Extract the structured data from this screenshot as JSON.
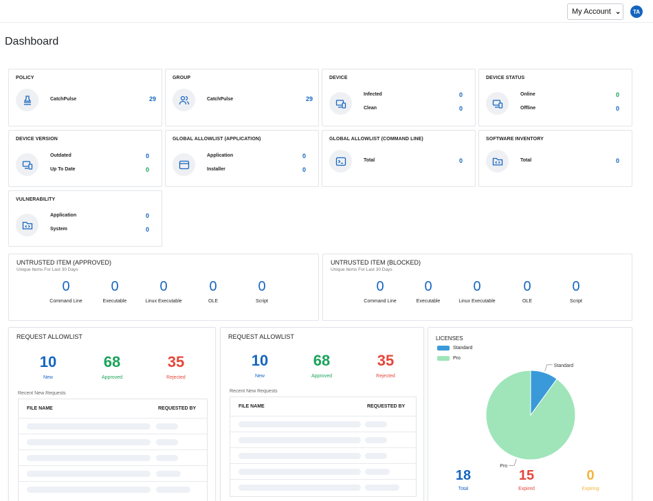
{
  "header": {
    "account_label": "My Account",
    "avatar_initials": "TA"
  },
  "page": {
    "title": "Dashboard"
  },
  "cards": {
    "policy": {
      "title": "POLICY",
      "label": "CatchPulse",
      "value": "29"
    },
    "group": {
      "title": "GROUP",
      "label": "CatchPulse",
      "value": "29"
    },
    "device": {
      "title": "DEVICE",
      "rows": [
        {
          "label": "Infected",
          "value": "0"
        },
        {
          "label": "Clean",
          "value": "0"
        }
      ]
    },
    "device_status": {
      "title": "DEVICE STATUS",
      "rows": [
        {
          "label": "Online",
          "value": "0"
        },
        {
          "label": "Offline",
          "value": "0"
        }
      ]
    },
    "device_version": {
      "title": "DEVICE VERSION",
      "rows": [
        {
          "label": "Outdated",
          "value": "0"
        },
        {
          "label": "Up To Date",
          "value": "0"
        }
      ]
    },
    "global_allowlist_app": {
      "title": "GLOBAL ALLOWLIST (APPLICATION)",
      "rows": [
        {
          "label": "Application",
          "value": "0"
        },
        {
          "label": "Installer",
          "value": "0"
        }
      ]
    },
    "global_allowlist_cmd": {
      "title": "GLOBAL ALLOWLIST (COMMAND LINE)",
      "label": "Total",
      "value": "0"
    },
    "software_inventory": {
      "title": "SOFTWARE INVENTORY",
      "label": "Total",
      "value": "0"
    },
    "vulnerability": {
      "title": "VULNERABILITY",
      "rows": [
        {
          "label": "Application",
          "value": "0"
        },
        {
          "label": "System",
          "value": "0"
        }
      ]
    }
  },
  "untrusted": [
    {
      "title": "UNTRUSTED ITEM (APPROVED)",
      "subtitle": "Unique Items For Last 30 Days",
      "items": [
        {
          "value": "0",
          "label": "Command Line"
        },
        {
          "value": "0",
          "label": "Executable"
        },
        {
          "value": "0",
          "label": "Linux Executable"
        },
        {
          "value": "0",
          "label": "OLE"
        },
        {
          "value": "0",
          "label": "Script"
        }
      ]
    },
    {
      "title": "UNTRUSTED ITEM (BLOCKED)",
      "subtitle": "Unique Items For Last 30 Days",
      "items": [
        {
          "value": "0",
          "label": "Command Line"
        },
        {
          "value": "0",
          "label": "Executable"
        },
        {
          "value": "0",
          "label": "Linux Executable"
        },
        {
          "value": "0",
          "label": "OLE"
        },
        {
          "value": "0",
          "label": "Script"
        }
      ]
    }
  ],
  "request_allowlist": [
    {
      "title": "REQUEST ALLOWLIST",
      "stats": [
        {
          "value": "10",
          "label": "New"
        },
        {
          "value": "68",
          "label": "Approved"
        },
        {
          "value": "35",
          "label": "Rejected"
        }
      ],
      "recent_label": "Recent New Requests",
      "columns": [
        "FILE NAME",
        "REQUESTED BY"
      ]
    },
    {
      "title": "REQUEST ALLOWLIST",
      "stats": [
        {
          "value": "10",
          "label": "New"
        },
        {
          "value": "68",
          "label": "Approved"
        },
        {
          "value": "35",
          "label": "Rejected"
        }
      ],
      "recent_label": "Recent New Requests",
      "columns": [
        "FILE NAME",
        "REQUESTED BY"
      ]
    }
  ],
  "licenses": {
    "title": "LICENSES",
    "stats": [
      {
        "value": "18",
        "label": "Total"
      },
      {
        "value": "15",
        "label": "Expired"
      },
      {
        "value": "0",
        "label": "Expiring"
      }
    ]
  },
  "chart_data": {
    "type": "pie",
    "title": "LICENSES",
    "legend": "top-left",
    "slices": [
      {
        "name": "Standard",
        "value": 10,
        "color": "#3a9ad9"
      },
      {
        "name": "Pro",
        "value": 90,
        "color": "#9fe5b9"
      }
    ]
  },
  "colors": {
    "blue": "#1565c0",
    "green": "#1aa35a",
    "red": "#e4473a",
    "orange": "#f2b43a"
  }
}
